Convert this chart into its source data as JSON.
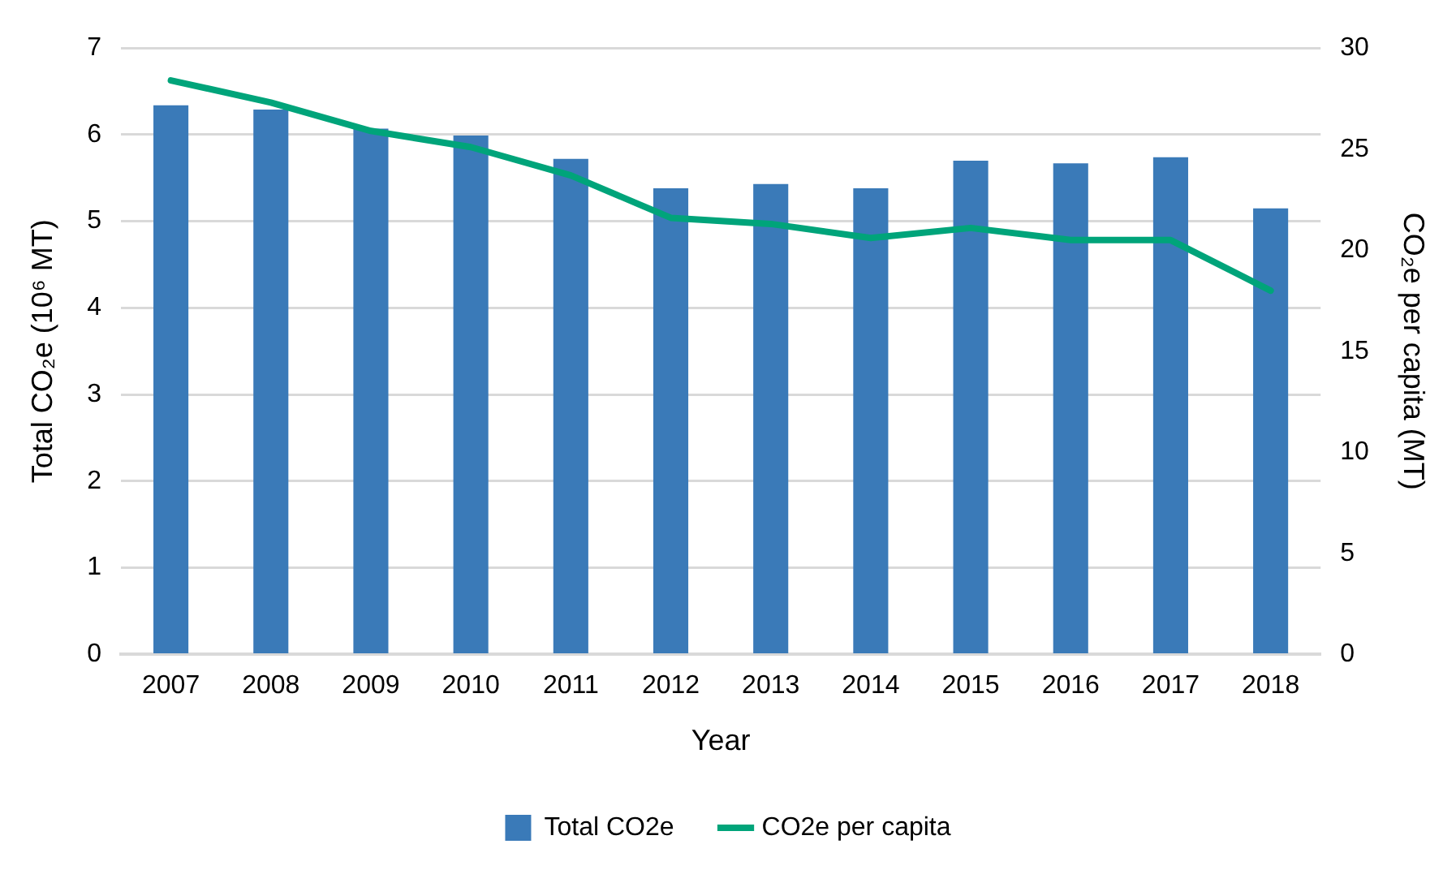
{
  "chart_data": {
    "type": "bar",
    "xlabel": "Year",
    "ylabel": "Total CO₂e (10⁶ MT)",
    "y2label": "CO₂e per capita (MT)",
    "categories": [
      "2007",
      "2008",
      "2009",
      "2010",
      "2011",
      "2012",
      "2013",
      "2014",
      "2015",
      "2016",
      "2017",
      "2018"
    ],
    "series": [
      {
        "name": "Total CO2e",
        "color": "#3a7ab8",
        "values": [
          6.34,
          6.29,
          6.07,
          5.99,
          5.72,
          5.38,
          5.43,
          5.38,
          5.7,
          5.67,
          5.74,
          5.15
        ]
      },
      {
        "name": "CO2e per capita",
        "type": "line",
        "axis": "y2",
        "color": "#00a47a",
        "values": [
          28.4,
          27.3,
          25.9,
          25.1,
          23.7,
          21.6,
          21.3,
          20.6,
          21.1,
          20.5,
          20.5,
          18.0
        ]
      }
    ],
    "ylim": [
      0,
      7
    ],
    "yticks": [
      0,
      1,
      2,
      3,
      4,
      5,
      6,
      7
    ],
    "y2lim": [
      0,
      30
    ],
    "y2ticks": [
      0,
      5,
      10,
      15,
      20,
      25,
      30
    ],
    "grid": "y",
    "legend": "bottom",
    "marker": "none",
    "line_style": "solid"
  }
}
